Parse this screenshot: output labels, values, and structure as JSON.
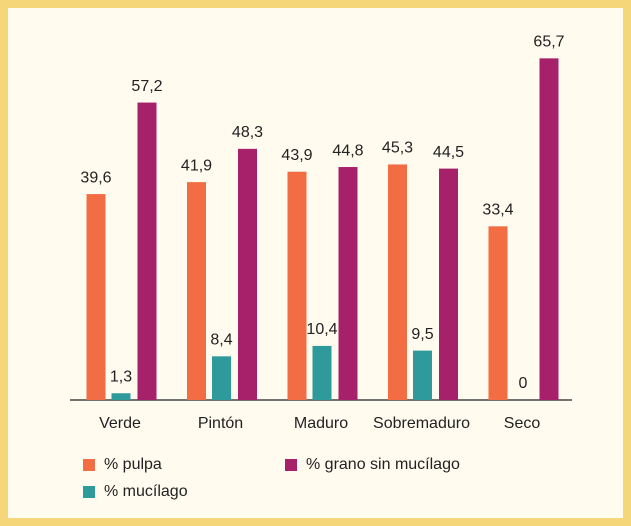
{
  "chart_data": {
    "type": "bar",
    "categories": [
      "Verde",
      "Pintón",
      "Maduro",
      "Sobremaduro",
      "Seco"
    ],
    "series": [
      {
        "name": "% pulpa",
        "color": "#f26d43",
        "values": [
          39.6,
          41.9,
          43.9,
          45.3,
          33.4
        ],
        "value_labels": [
          "39,6",
          "41,9",
          "43,9",
          "45,3",
          "33,4"
        ]
      },
      {
        "name": "% mucílago",
        "color": "#2e9a9c",
        "values": [
          1.3,
          8.4,
          10.4,
          9.5,
          0
        ],
        "value_labels": [
          "1,3",
          "8,4",
          "10,4",
          "9,5",
          "0"
        ]
      },
      {
        "name": "% grano sin mucílago",
        "color": "#a6206a",
        "values": [
          57.2,
          48.3,
          44.8,
          44.5,
          65.7
        ],
        "value_labels": [
          "57,2",
          "48,3",
          "44,8",
          "44,5",
          "65,7"
        ]
      }
    ],
    "legend": "bottom"
  }
}
